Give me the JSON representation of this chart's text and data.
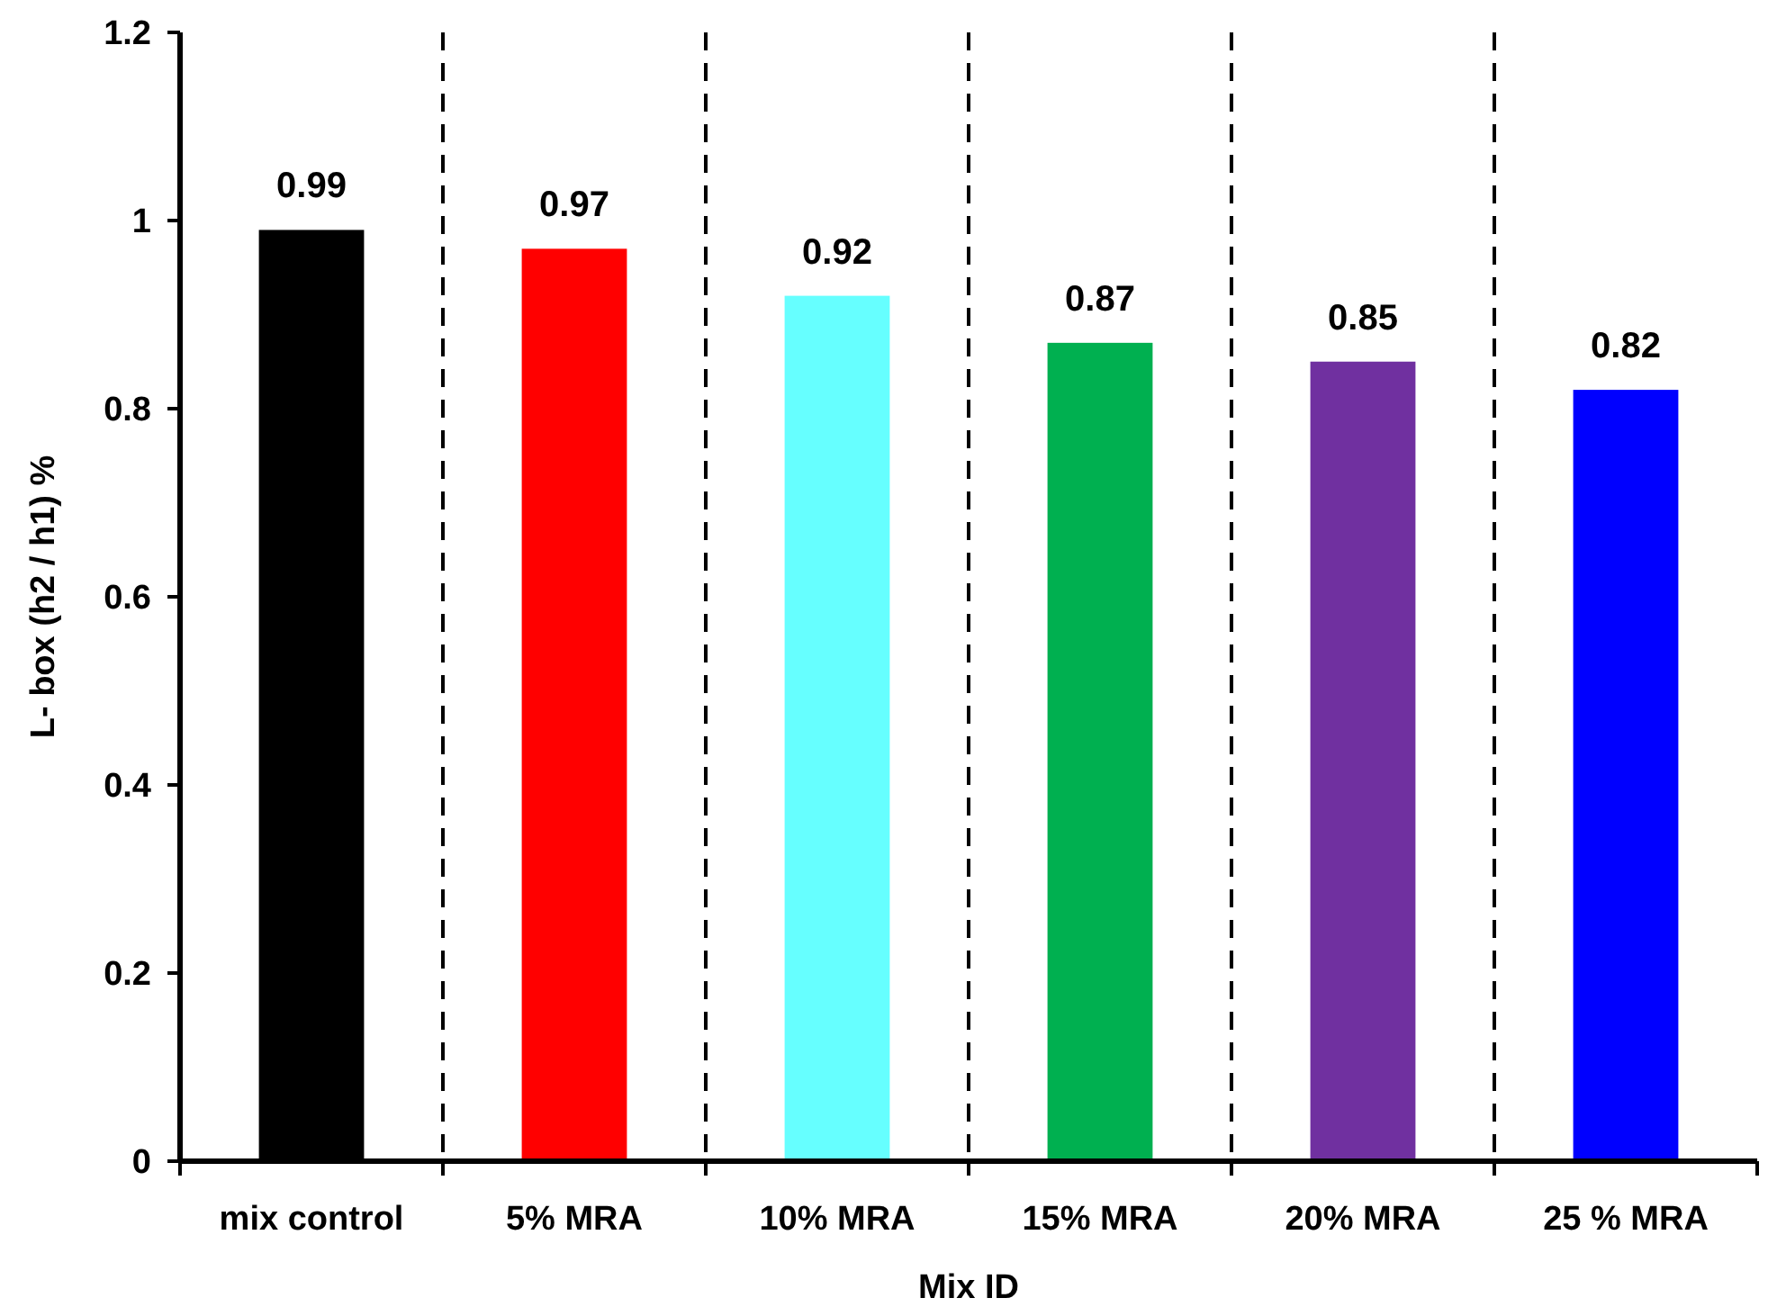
{
  "chart_data": {
    "type": "bar",
    "xlabel": "Mix ID",
    "ylabel": "L- box (h2 / h1) %",
    "categories": [
      "mix control",
      "5% MRA",
      "10% MRA",
      "15% MRA",
      "20% MRA",
      "25 % MRA"
    ],
    "values": [
      0.99,
      0.97,
      0.92,
      0.87,
      0.85,
      0.82
    ],
    "colors": [
      "#000000",
      "#ff0000",
      "#66ffff",
      "#00b050",
      "#7030a0",
      "#0000ff"
    ],
    "ylim": [
      0,
      1.2
    ],
    "yticks": [
      0,
      0.2,
      0.4,
      0.6,
      0.8,
      1,
      1.2
    ],
    "data_labels": true,
    "grid": "x"
  }
}
